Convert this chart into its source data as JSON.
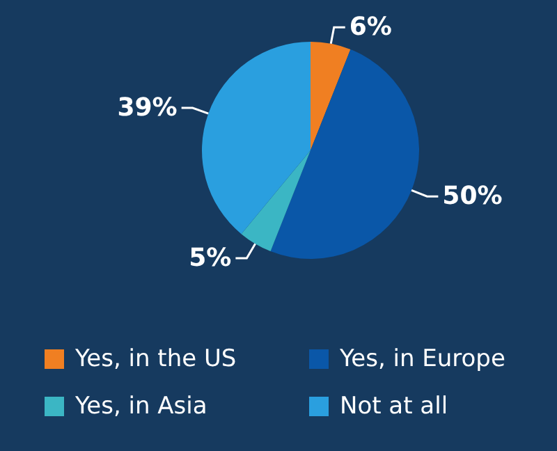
{
  "chart_data": {
    "type": "pie",
    "categories": [
      "Yes, in the US",
      "Yes, in Europe",
      "Yes, in Asia",
      "Not at all"
    ],
    "values": [
      6,
      50,
      5,
      39
    ],
    "value_labels": [
      "6%",
      "50%",
      "5%",
      "39%"
    ],
    "colors": [
      "#f07f22",
      "#0a57a8",
      "#3bb6c4",
      "#2a9fdf"
    ],
    "legend": "bottom"
  }
}
